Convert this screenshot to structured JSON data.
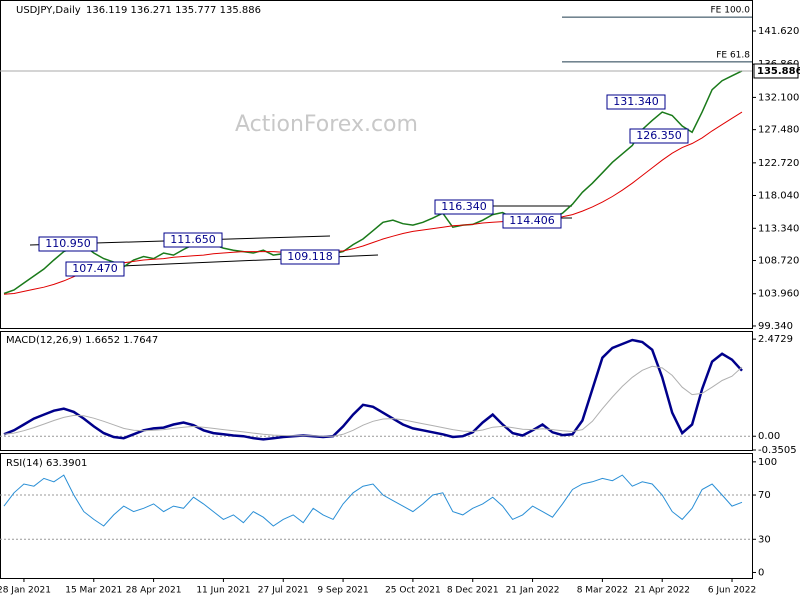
{
  "chart_data": [
    {
      "type": "line",
      "title": "USDJPY,Daily",
      "subtitle": "136.119 136.271 135.777 135.886",
      "watermark": "ActionForex.com",
      "categories": [
        null,
        null,
        "28 Jan 2021",
        null,
        null,
        null,
        null,
        null,
        null,
        "15 Mar 2021",
        null,
        null,
        null,
        null,
        null,
        "28 Apr 2021",
        null,
        null,
        null,
        null,
        null,
        null,
        "11 Jun 2021",
        null,
        null,
        null,
        null,
        null,
        "27 Jul 2021",
        null,
        null,
        null,
        null,
        null,
        "9 Sep 2021",
        null,
        null,
        null,
        null,
        null,
        null,
        "25 Oct 2021",
        null,
        null,
        null,
        null,
        null,
        "8 Dec 2021",
        null,
        null,
        null,
        null,
        null,
        "21 Jan 2022",
        null,
        null,
        null,
        null,
        null,
        null,
        "8 Mar 2022",
        null,
        null,
        null,
        null,
        null,
        "21 Apr 2022",
        null,
        null,
        null,
        null,
        null,
        null,
        "6 Jun 2022",
        null
      ],
      "series": [
        {
          "color": "#1a7a1a",
          "values": [
            104.0,
            104.5,
            105.5,
            106.5,
            107.5,
            108.8,
            110.0,
            110.5,
            110.9,
            109.8,
            109.0,
            108.5,
            107.8,
            108.8,
            109.3,
            109.0,
            109.8,
            109.5,
            110.3,
            111.0,
            111.3,
            111.0,
            110.5,
            110.2,
            110.0,
            109.8,
            110.2,
            109.5,
            109.7,
            109.3,
            110.0,
            109.6,
            109.9,
            109.7,
            110.0,
            111.0,
            111.8,
            113.0,
            114.2,
            114.5,
            114.0,
            113.8,
            114.2,
            114.8,
            115.5,
            113.5,
            113.8,
            113.9,
            114.5,
            115.3,
            115.6,
            114.8,
            114.0,
            114.6,
            115.3,
            114.9,
            115.5,
            116.8,
            118.5,
            119.8,
            121.3,
            122.8,
            124.0,
            125.2,
            127.5,
            128.8,
            130.0,
            129.5,
            128.0,
            127.1,
            130.0,
            133.2,
            134.5,
            135.2,
            135.9
          ]
        },
        {
          "color": "#e00000",
          "values": [
            103.9,
            104.0,
            104.3,
            104.6,
            104.9,
            105.3,
            105.8,
            106.4,
            107.0,
            107.5,
            107.9,
            108.2,
            108.4,
            108.6,
            108.8,
            108.9,
            109.0,
            109.2,
            109.3,
            109.4,
            109.5,
            109.7,
            109.8,
            109.9,
            110.0,
            110.0,
            110.0,
            110.0,
            109.9,
            109.9,
            109.9,
            109.9,
            109.9,
            110.0,
            110.1,
            110.4,
            110.8,
            111.3,
            111.8,
            112.2,
            112.6,
            112.9,
            113.1,
            113.3,
            113.5,
            113.7,
            113.8,
            113.9,
            114.1,
            114.2,
            114.3,
            114.4,
            114.5,
            114.6,
            114.7,
            114.8,
            115.0,
            115.3,
            115.8,
            116.4,
            117.1,
            117.9,
            118.8,
            119.8,
            120.9,
            122.0,
            123.1,
            124.1,
            124.9,
            125.5,
            126.3,
            127.3,
            128.2,
            129.1,
            130.0
          ]
        }
      ],
      "ylim": [
        99.05,
        146.06
      ],
      "yticks": [
        {
          "value": 141.62,
          "label": "141.620"
        },
        {
          "value": 136.86,
          "label": "136.860"
        },
        {
          "value": 132.1,
          "label": "132.100"
        },
        {
          "value": 127.48,
          "label": "127.480"
        },
        {
          "value": 122.72,
          "label": "122.720"
        },
        {
          "value": 118.04,
          "label": "118.040"
        },
        {
          "value": 113.34,
          "label": "113.340"
        },
        {
          "value": 108.72,
          "label": "108.720"
        },
        {
          "value": 103.96,
          "label": "103.960"
        },
        {
          "value": 99.34,
          "label": "99.340"
        }
      ],
      "last": 135.886,
      "levels": [
        {
          "value": 143.6,
          "label": "FE 100.0"
        },
        {
          "value": 137.2,
          "label": "FE 61.8"
        }
      ],
      "annotations": [
        "110.950",
        "107.470",
        "111.650",
        "109.118",
        "116.340",
        "114.406",
        "131.340",
        "126.350"
      ]
    },
    {
      "type": "line",
      "title": "MACD(12,26,9) 1.6652 1.7647",
      "series": [
        {
          "color": "#00008b",
          "values": [
            0.05,
            0.15,
            0.3,
            0.45,
            0.55,
            0.65,
            0.7,
            0.62,
            0.45,
            0.25,
            0.08,
            -0.02,
            -0.05,
            0.05,
            0.15,
            0.2,
            0.22,
            0.3,
            0.35,
            0.28,
            0.15,
            0.08,
            0.05,
            0.02,
            0.0,
            -0.05,
            -0.08,
            -0.05,
            -0.02,
            0.0,
            0.02,
            0.0,
            -0.02,
            0.0,
            0.25,
            0.55,
            0.8,
            0.75,
            0.6,
            0.45,
            0.3,
            0.2,
            0.15,
            0.1,
            0.05,
            -0.02,
            0.0,
            0.1,
            0.35,
            0.55,
            0.3,
            0.08,
            0.02,
            0.15,
            0.3,
            0.1,
            0.03,
            0.05,
            0.4,
            1.2,
            2.0,
            2.25,
            2.35,
            2.45,
            2.4,
            2.2,
            1.5,
            0.6,
            0.08,
            0.3,
            1.2,
            1.9,
            2.1,
            1.95,
            1.67
          ]
        },
        {
          "color": "#b0b0b0",
          "values": [
            0.05,
            0.08,
            0.14,
            0.22,
            0.31,
            0.4,
            0.48,
            0.53,
            0.52,
            0.46,
            0.38,
            0.29,
            0.2,
            0.15,
            0.14,
            0.15,
            0.17,
            0.2,
            0.23,
            0.25,
            0.23,
            0.2,
            0.17,
            0.14,
            0.11,
            0.08,
            0.05,
            0.03,
            0.02,
            0.01,
            0.01,
            0.01,
            0.0,
            0.0,
            0.05,
            0.15,
            0.28,
            0.38,
            0.44,
            0.45,
            0.42,
            0.37,
            0.32,
            0.27,
            0.22,
            0.17,
            0.13,
            0.12,
            0.16,
            0.23,
            0.25,
            0.22,
            0.18,
            0.17,
            0.19,
            0.17,
            0.14,
            0.12,
            0.17,
            0.38,
            0.7,
            1.0,
            1.27,
            1.5,
            1.68,
            1.78,
            1.74,
            1.55,
            1.25,
            1.06,
            1.09,
            1.25,
            1.42,
            1.53,
            1.76
          ]
        }
      ],
      "ylim": [
        -0.3505,
        2.68
      ],
      "yticks": [
        2.4729,
        {
          "value": 0,
          "label": "0.00"
        },
        -0.3505
      ]
    },
    {
      "type": "line",
      "title": "RSI(14) 63.3901",
      "series": [
        {
          "color": "#2a8fd6",
          "values": [
            60,
            72,
            80,
            78,
            85,
            82,
            88,
            70,
            55,
            48,
            42,
            52,
            60,
            55,
            58,
            62,
            55,
            60,
            58,
            68,
            62,
            55,
            48,
            52,
            45,
            55,
            50,
            42,
            48,
            52,
            45,
            58,
            52,
            48,
            62,
            72,
            78,
            80,
            70,
            65,
            60,
            55,
            62,
            70,
            72,
            55,
            52,
            58,
            62,
            68,
            60,
            48,
            52,
            60,
            55,
            50,
            62,
            75,
            80,
            82,
            85,
            83,
            88,
            78,
            82,
            80,
            70,
            55,
            48,
            58,
            75,
            80,
            70,
            60,
            63.39
          ]
        }
      ],
      "ylim": [
        -5,
        108
      ],
      "yticks": [
        100,
        70,
        30,
        0
      ]
    }
  ]
}
